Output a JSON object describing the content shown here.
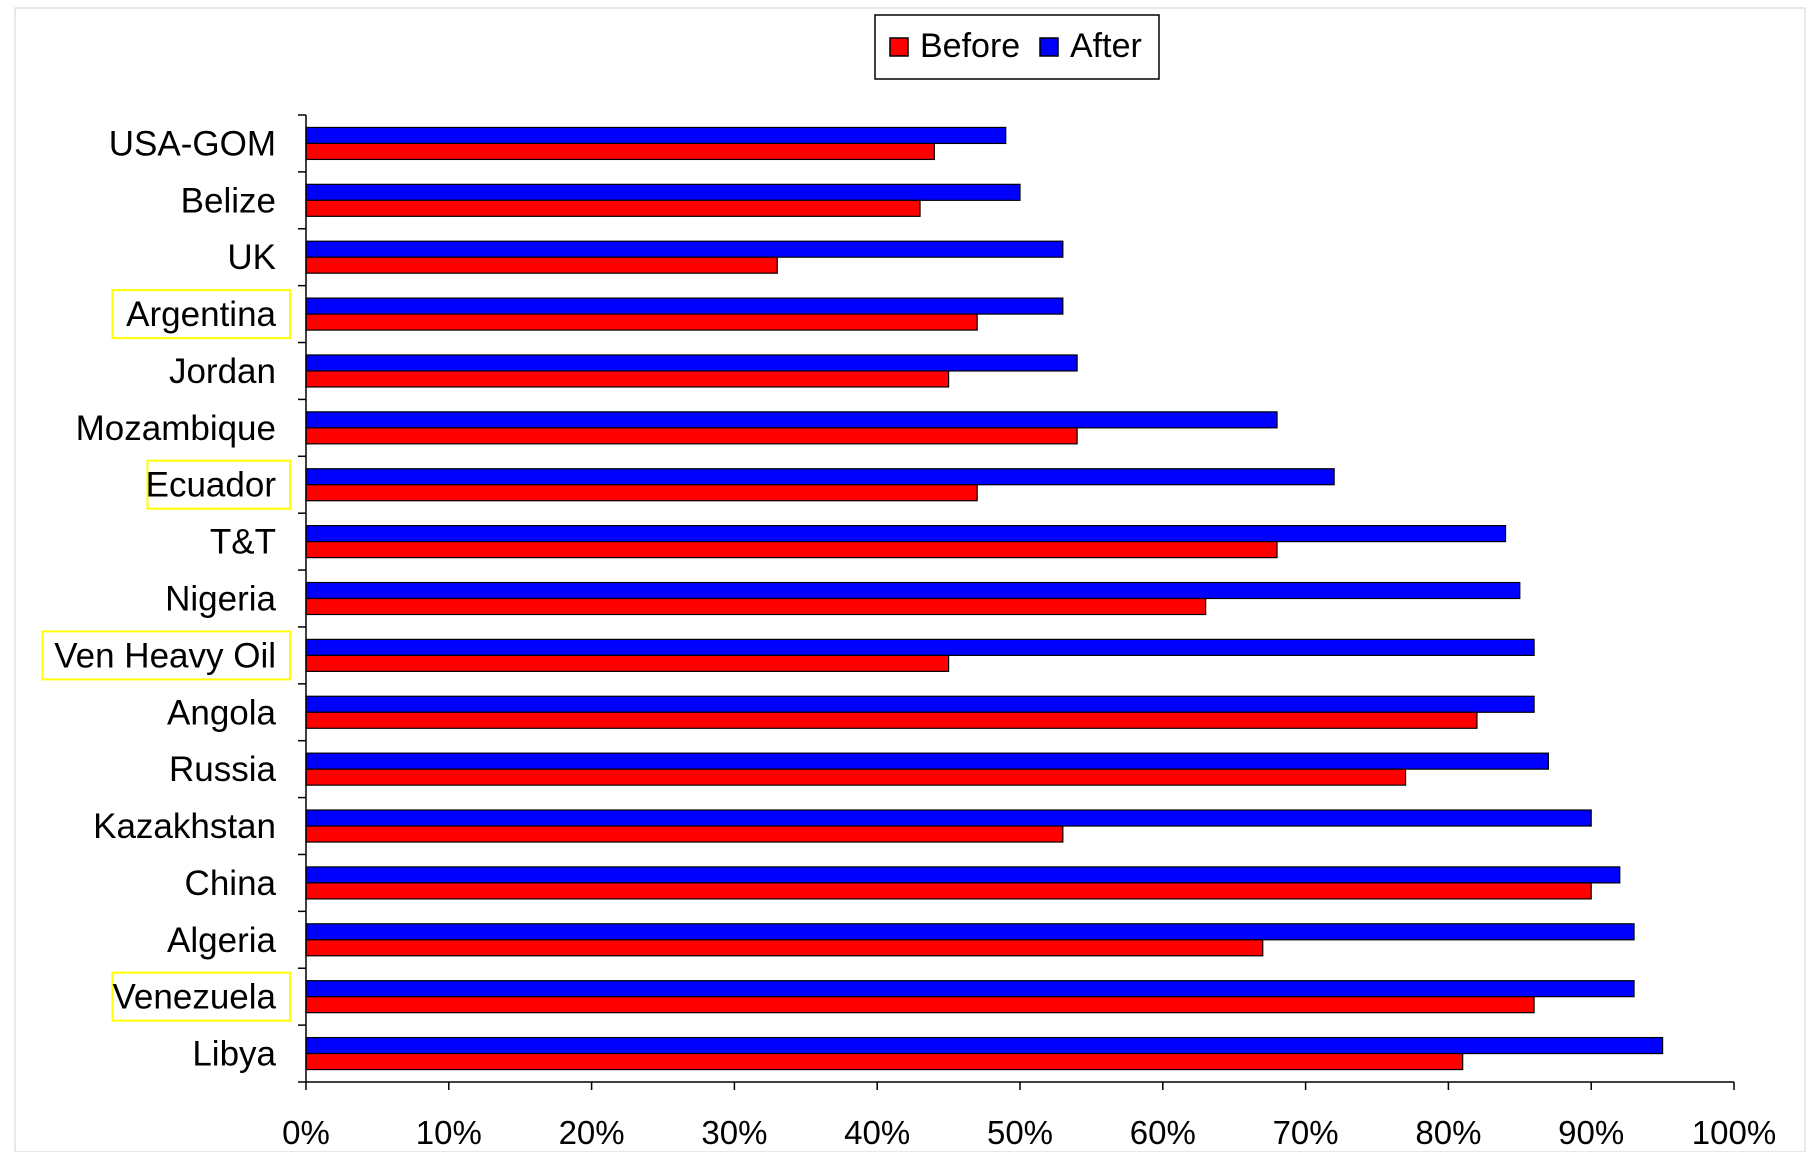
{
  "chart_data": {
    "type": "bar",
    "orientation": "horizontal",
    "categories": [
      "USA-GOM",
      "Belize",
      "UK",
      "Argentina",
      "Jordan",
      "Mozambique",
      "Ecuador",
      "T&T",
      "Nigeria",
      "Ven Heavy Oil",
      "Angola",
      "Russia",
      "Kazakhstan",
      "China",
      "Algeria",
      "Venezuela",
      "Libya"
    ],
    "series": [
      {
        "name": "Before",
        "color": "#ff0000",
        "values": [
          44,
          43,
          33,
          47,
          45,
          54,
          47,
          68,
          63,
          45,
          82,
          77,
          53,
          90,
          67,
          86,
          81
        ]
      },
      {
        "name": "After",
        "color": "#0000ff",
        "values": [
          49,
          50,
          53,
          53,
          54,
          68,
          72,
          84,
          85,
          86,
          86,
          87,
          90,
          92,
          93,
          93,
          95
        ]
      }
    ],
    "highlighted_categories": [
      "Argentina",
      "Ecuador",
      "Ven Heavy Oil",
      "Venezuela"
    ],
    "highlight_color": "#ffff00",
    "xlim": [
      0,
      100
    ],
    "x_ticks": [
      "0%",
      "10%",
      "20%",
      "30%",
      "40%",
      "50%",
      "60%",
      "70%",
      "80%",
      "90%",
      "100%"
    ],
    "legend": {
      "position": "top-center",
      "entries": [
        "Before",
        "After"
      ]
    },
    "grid": false
  }
}
